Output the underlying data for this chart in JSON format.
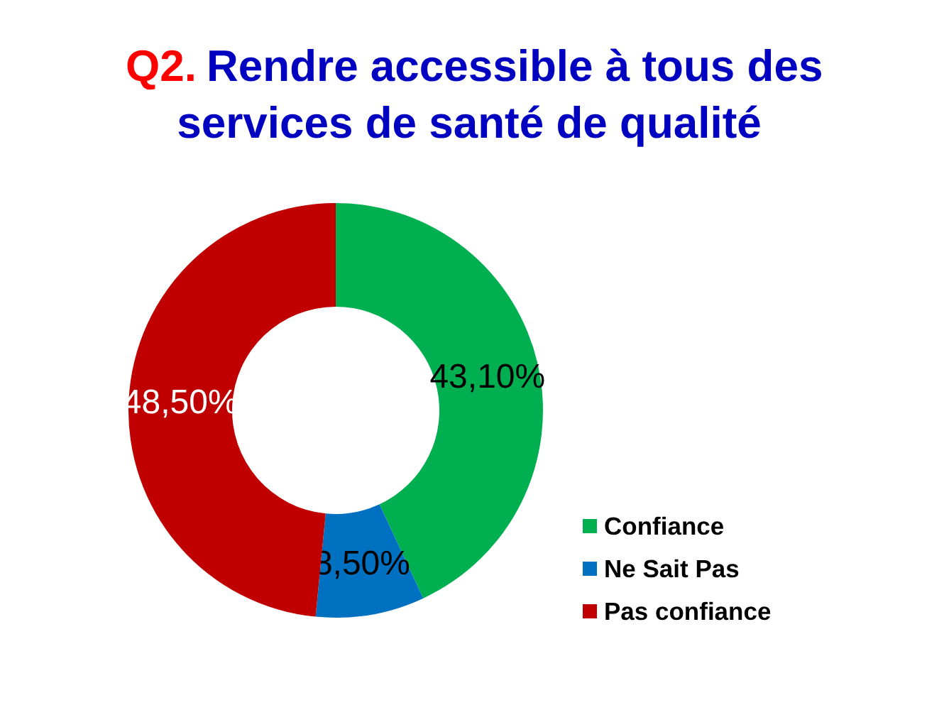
{
  "chart_data": {
    "type": "donut",
    "title": "Q2. Rendre accessible à tous des services de santé de qualité",
    "categories": [
      "Confiance",
      "Ne Sait Pas",
      "Pas confiance"
    ],
    "values": [
      43.1,
      8.5,
      48.5
    ],
    "colors": [
      "#00b050",
      "#0070c0",
      "#c00000"
    ],
    "value_labels": [
      "43,10%",
      "8,50%",
      "48,50%"
    ],
    "legend": "bottom right"
  }
}
